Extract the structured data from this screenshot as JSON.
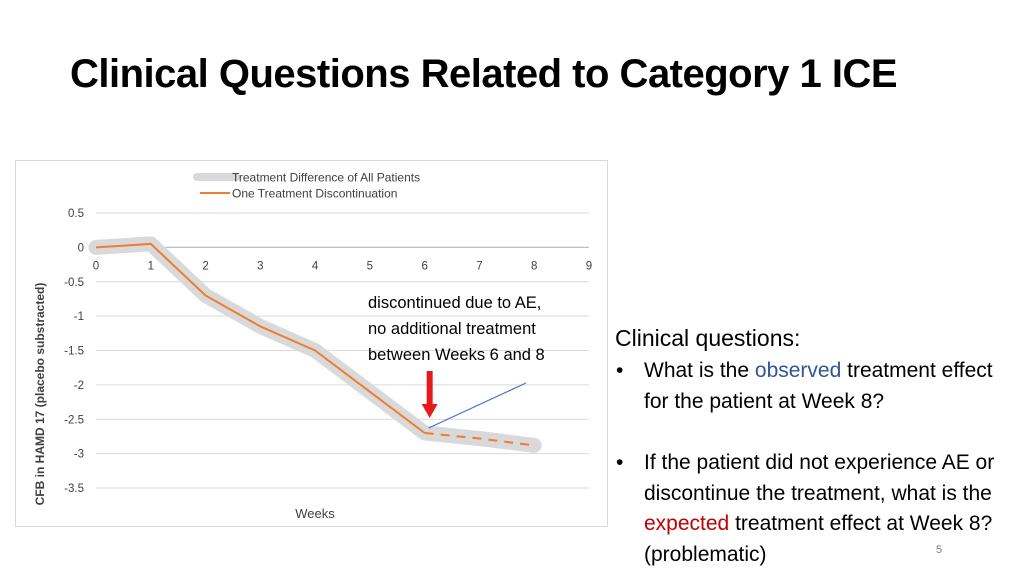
{
  "title": "Clinical Questions Related to Category 1 ICE",
  "chart_data": {
    "type": "line",
    "xlabel": "Weeks",
    "ylabel": "CFB in HAMD 17 (placebo substracted)",
    "x_ticks": [
      "0",
      "1",
      "2",
      "3",
      "4",
      "5",
      "6",
      "7",
      "8",
      "9"
    ],
    "y_ticks": [
      "0.5",
      "0",
      "-0.5",
      "-1",
      "-1.5",
      "-2",
      "-2.5",
      "-3",
      "-3.5"
    ],
    "xlim": [
      0,
      9
    ],
    "ylim": [
      -3.5,
      0.5
    ],
    "legend": {
      "position": "top",
      "entries": [
        "Treatment Difference of All Patients",
        "One Treatment Discontinuation"
      ]
    },
    "series": [
      {
        "name": "Treatment Difference of All Patients",
        "color": "#d9d9d9",
        "points": [
          [
            0,
            0
          ],
          [
            1,
            0.05
          ],
          [
            2,
            -0.7
          ],
          [
            3,
            -1.15
          ],
          [
            4,
            -1.5
          ],
          [
            5,
            -2.1
          ],
          [
            6,
            -2.7
          ],
          [
            7,
            -2.78
          ],
          [
            8,
            -2.88
          ]
        ]
      },
      {
        "name": "One Treatment Discontinuation",
        "color": "#ed7d31",
        "solid_points": [
          [
            0,
            0
          ],
          [
            1,
            0.05
          ],
          [
            2,
            -0.7
          ],
          [
            3,
            -1.15
          ],
          [
            4,
            -1.5
          ],
          [
            5,
            -2.1
          ],
          [
            6,
            -2.7
          ]
        ],
        "dashed_points": [
          [
            6,
            -2.7
          ],
          [
            7,
            -2.78
          ],
          [
            8,
            -2.88
          ]
        ]
      }
    ],
    "marker_color": "#e41a1c",
    "pointer_color": "#4472c4"
  },
  "annotation": {
    "lines": [
      "discontinued due to AE,",
      "no additional treatment",
      "between Weeks 6 and 8"
    ]
  },
  "questions": {
    "heading": "Clinical questions:",
    "bullet": "•",
    "q1": {
      "before": "What is the ",
      "highlight": "observed",
      "after": " treatment effect for the patient at Week 8?"
    },
    "q2": {
      "before": "If the patient did not experience AE or discontinue the treatment, what is the ",
      "highlight": "expected",
      "after": " treatment effect at Week 8? (problematic)"
    }
  },
  "page_number": "5"
}
